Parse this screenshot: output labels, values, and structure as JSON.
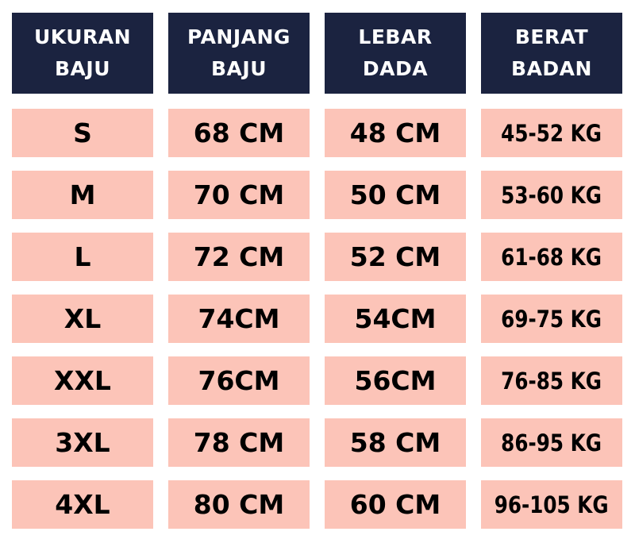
{
  "colors": {
    "header_bg": "#1b2340",
    "header_text": "#ffffff",
    "row_bg": "#fcc4b8",
    "row_text": "#000000"
  },
  "headers": [
    [
      "UKURAN",
      "BAJU"
    ],
    [
      "PANJANG",
      "BAJU"
    ],
    [
      "LEBAR",
      "DADA"
    ],
    [
      "BERAT",
      "BADAN"
    ]
  ],
  "rows": [
    [
      "S",
      "68 CM",
      "48 CM",
      "45-52 KG"
    ],
    [
      "M",
      "70 CM",
      "50 CM",
      "53-60 KG"
    ],
    [
      "L",
      "72 CM",
      "52 CM",
      "61-68 KG"
    ],
    [
      "XL",
      "74CM",
      "54CM",
      "69-75 KG"
    ],
    [
      "XXL",
      "76CM",
      "56CM",
      "76-85 KG"
    ],
    [
      "3XL",
      "78 CM",
      "58 CM",
      "86-95 KG"
    ],
    [
      "4XL",
      "80 CM",
      "60 CM",
      "96-105 KG"
    ]
  ]
}
